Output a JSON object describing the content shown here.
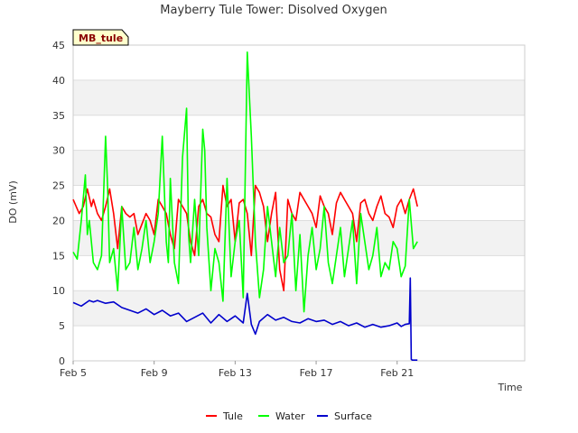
{
  "chart_data": {
    "type": "line",
    "title": "Mayberry Tule Tower: Disolved Oxygen",
    "site_tag": "MB_tule",
    "xlabel": "Time",
    "ylabel": "DO (mV)",
    "x_unit": "days since Feb 5",
    "xlim": [
      0,
      22.3
    ],
    "ylim": [
      0,
      45
    ],
    "y_ticks": [
      0,
      5,
      10,
      15,
      20,
      25,
      30,
      35,
      40,
      45
    ],
    "x_ticks": [
      {
        "value": 0,
        "label": "Feb 5"
      },
      {
        "value": 4,
        "label": "Feb 9"
      },
      {
        "value": 8,
        "label": "Feb 13"
      },
      {
        "value": 12,
        "label": "Feb 17"
      },
      {
        "value": 16,
        "label": "Feb 21"
      }
    ],
    "grid": true,
    "legend_position": "bottom",
    "series": [
      {
        "name": "Tule",
        "color": "#ff0000",
        "x": [
          0.0,
          0.3,
          0.5,
          0.7,
          0.9,
          1.0,
          1.2,
          1.4,
          1.6,
          1.8,
          2.0,
          2.2,
          2.4,
          2.6,
          2.8,
          3.0,
          3.2,
          3.4,
          3.6,
          3.8,
          4.0,
          4.2,
          4.4,
          4.6,
          4.8,
          5.0,
          5.2,
          5.4,
          5.6,
          5.8,
          6.0,
          6.2,
          6.4,
          6.6,
          6.8,
          7.0,
          7.2,
          7.4,
          7.6,
          7.8,
          8.0,
          8.2,
          8.4,
          8.6,
          8.8,
          9.0,
          9.2,
          9.4,
          9.6,
          9.8,
          10.0,
          10.2,
          10.4,
          10.6,
          10.8,
          11.0,
          11.2,
          11.4,
          11.6,
          11.8,
          12.0,
          12.2,
          12.4,
          12.6,
          12.8,
          13.0,
          13.2,
          13.4,
          13.6,
          13.8,
          14.0,
          14.2,
          14.4,
          14.6,
          14.8,
          15.0,
          15.2,
          15.4,
          15.6,
          15.8,
          16.0,
          16.2,
          16.4,
          16.6,
          16.8,
          17.0
        ],
        "values": [
          23,
          21,
          22,
          24.5,
          22,
          23,
          21,
          20,
          22,
          24.5,
          21,
          16,
          22,
          21,
          20.5,
          21,
          18,
          19.5,
          21,
          20,
          18,
          23,
          22,
          21,
          18,
          16,
          23,
          22,
          21,
          17,
          15,
          22,
          23,
          21,
          20.5,
          18,
          17,
          25,
          22,
          23,
          17,
          22.5,
          23,
          21,
          15,
          25,
          24,
          22,
          17,
          21,
          24,
          13,
          10,
          23,
          21,
          20,
          24,
          23,
          22,
          21,
          19,
          23.5,
          22,
          21,
          18,
          22.5,
          24,
          23,
          22,
          21,
          17,
          22.5,
          23,
          21,
          20,
          22,
          23.5,
          21,
          20.5,
          19,
          22,
          23,
          21,
          23,
          24.5,
          22
        ]
      },
      {
        "name": "Water",
        "color": "#00ff00",
        "x": [
          0.0,
          0.2,
          0.4,
          0.6,
          0.7,
          0.8,
          1.0,
          1.2,
          1.4,
          1.6,
          1.7,
          1.8,
          2.0,
          2.2,
          2.4,
          2.6,
          2.8,
          3.0,
          3.2,
          3.4,
          3.6,
          3.8,
          4.0,
          4.2,
          4.4,
          4.6,
          4.7,
          4.8,
          5.0,
          5.2,
          5.4,
          5.6,
          5.7,
          5.8,
          6.0,
          6.2,
          6.4,
          6.5,
          6.6,
          6.8,
          7.0,
          7.2,
          7.4,
          7.6,
          7.8,
          8.0,
          8.2,
          8.4,
          8.6,
          8.8,
          9.0,
          9.2,
          9.4,
          9.6,
          9.8,
          10.0,
          10.2,
          10.4,
          10.6,
          10.8,
          11.0,
          11.2,
          11.4,
          11.6,
          11.8,
          12.0,
          12.2,
          12.4,
          12.6,
          12.8,
          13.0,
          13.2,
          13.4,
          13.6,
          13.8,
          14.0,
          14.2,
          14.4,
          14.6,
          14.8,
          15.0,
          15.2,
          15.4,
          15.6,
          15.8,
          16.0,
          16.2,
          16.4,
          16.6,
          16.8,
          17.0
        ],
        "values": [
          15.5,
          14.5,
          20,
          26.5,
          18,
          20,
          14,
          13,
          15,
          32,
          25,
          14,
          16,
          10,
          22,
          13,
          14,
          19,
          13,
          16,
          20,
          14,
          17,
          21,
          32,
          17,
          14,
          26,
          14,
          11,
          29,
          36,
          18,
          14,
          23,
          15,
          33,
          30,
          19,
          10,
          16,
          14,
          8.5,
          26,
          12,
          17,
          20,
          9,
          44,
          32,
          17,
          9,
          13,
          22,
          17,
          12,
          19,
          14,
          15,
          21,
          10,
          18,
          7,
          15,
          19,
          13,
          16,
          22,
          14,
          11,
          15,
          19,
          12,
          16,
          20,
          11,
          21,
          17,
          13,
          15,
          19,
          12,
          14,
          13,
          17,
          16,
          12,
          13.5,
          23,
          16,
          17
        ]
      },
      {
        "name": "Surface",
        "color": "#0000cc",
        "x": [
          0.0,
          0.4,
          0.8,
          1.0,
          1.2,
          1.6,
          2.0,
          2.4,
          2.8,
          3.2,
          3.6,
          4.0,
          4.4,
          4.8,
          5.2,
          5.6,
          6.0,
          6.4,
          6.8,
          7.2,
          7.6,
          8.0,
          8.4,
          8.6,
          8.8,
          9.0,
          9.2,
          9.6,
          10.0,
          10.4,
          10.8,
          11.2,
          11.6,
          12.0,
          12.4,
          12.8,
          13.2,
          13.6,
          14.0,
          14.4,
          14.8,
          15.2,
          15.6,
          16.0,
          16.2,
          16.4,
          16.6,
          16.65,
          16.7,
          16.75,
          17.0
        ],
        "values": [
          8.3,
          7.8,
          8.6,
          8.4,
          8.6,
          8.2,
          8.4,
          7.6,
          7.2,
          6.8,
          7.4,
          6.6,
          7.2,
          6.4,
          6.8,
          5.6,
          6.2,
          6.8,
          5.4,
          6.6,
          5.6,
          6.4,
          5.4,
          9.6,
          5.2,
          3.8,
          5.6,
          6.6,
          5.8,
          6.2,
          5.6,
          5.4,
          6.0,
          5.6,
          5.8,
          5.2,
          5.6,
          5.0,
          5.4,
          4.8,
          5.2,
          4.8,
          5.0,
          5.4,
          4.9,
          5.2,
          5.3,
          11.8,
          0.2,
          0.1,
          0.1
        ]
      }
    ]
  }
}
